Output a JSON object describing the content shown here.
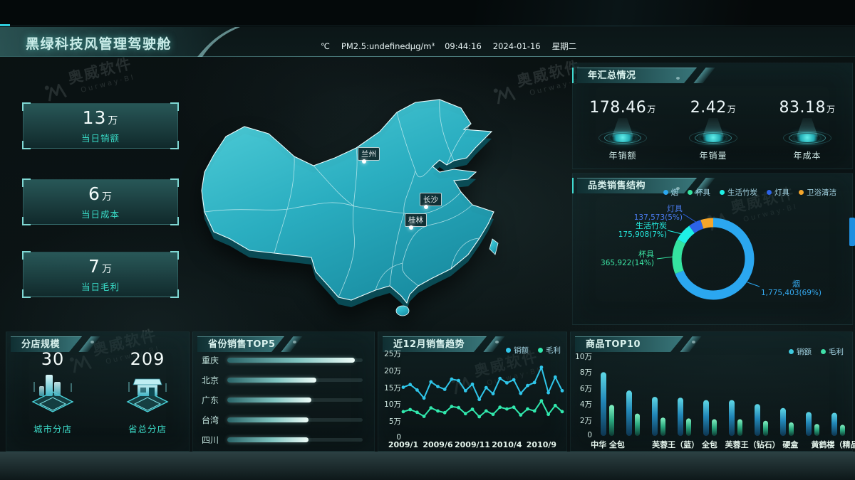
{
  "header": {
    "title": "黑绿科技风管理驾驶舱",
    "temperature": "℃",
    "pm25": "PM2.5:undefinedμg/m³",
    "time": "09:44:16",
    "date": "2024-01-16",
    "weekday": "星期二"
  },
  "left_stats": [
    {
      "value": "13",
      "unit": "万",
      "label": "当日销额"
    },
    {
      "value": "6",
      "unit": "万",
      "label": "当日成本"
    },
    {
      "value": "7",
      "unit": "万",
      "label": "当日毛利"
    }
  ],
  "map": {
    "cities": [
      {
        "name": "兰州"
      },
      {
        "name": "长沙"
      },
      {
        "name": "桂林"
      }
    ]
  },
  "annual": {
    "title": "年汇总情况",
    "items": [
      {
        "value": "178.46",
        "unit": "万",
        "label": "年销额"
      },
      {
        "value": "2.42",
        "unit": "万",
        "label": "年销量"
      },
      {
        "value": "83.18",
        "unit": "万",
        "label": "年成本"
      }
    ]
  },
  "category": {
    "title": "品类销售结构"
  },
  "branch": {
    "title": "分店规模",
    "items": [
      {
        "value": "30",
        "label": "城市分店",
        "icon": "building-icon"
      },
      {
        "value": "209",
        "label": "省总分店",
        "icon": "store-icon"
      }
    ]
  },
  "province": {
    "title": "省份销售TOP5"
  },
  "trend": {
    "title": "近12月销售趋势"
  },
  "product": {
    "title": "商品TOP10"
  },
  "watermark": {
    "cn": "奥威软件",
    "en": "Ourway·BI"
  },
  "colors": {
    "accent": "#35dcc8",
    "sales_line": "#2fc6ea",
    "profit_line": "#31e8ad",
    "pie_yan": "#2ba7f0",
    "pie_beiju": "#35e3a0",
    "pie_zhutan": "#1ef0e6",
    "pie_dengju": "#2c63e8",
    "pie_weiyu": "#f5a62b"
  },
  "chart_data": [
    {
      "id": "category-donut",
      "type": "pie",
      "title": "品类销售结构",
      "legend": [
        "烟",
        "杯具",
        "生活竹炭",
        "灯具",
        "卫浴清洁"
      ],
      "legend_position": "top-right",
      "inner_radius_ratio": 0.78,
      "segments": [
        {
          "name": "烟",
          "value": 1775403,
          "percent": 69,
          "color": "#2ba7f0",
          "label": "1,775,403(69%)"
        },
        {
          "name": "杯具",
          "value": 365922,
          "percent": 14,
          "color": "#35e3a0",
          "label": "365,922(14%)"
        },
        {
          "name": "生活竹炭",
          "value": 175908,
          "percent": 7,
          "color": "#1ef0e6",
          "label": "175,908(7%)"
        },
        {
          "name": "灯具",
          "value": 137573,
          "percent": 5,
          "color": "#2c63e8",
          "label": "137,573(5%)"
        },
        {
          "name": "卫浴清洁",
          "percent": 5,
          "color": "#f5a62b",
          "label": ""
        }
      ]
    },
    {
      "id": "trend-line",
      "type": "line",
      "title": "近12月销售趋势",
      "legend": [
        "销额",
        "毛利"
      ],
      "ylim": [
        0,
        25
      ],
      "y_ticks": [
        "25万",
        "20万",
        "15万",
        "10万",
        "5万",
        "0"
      ],
      "x_tick_labels": [
        "2009/1",
        "2009/6",
        "2009/11",
        "2010/4",
        "2010/9"
      ],
      "x_tick_positions": [
        0,
        5,
        10,
        15,
        20
      ],
      "series": [
        {
          "name": "销额",
          "color": "#2fc6ea",
          "values": [
            15.0,
            15.8,
            14.2,
            11.8,
            16.6,
            15.2,
            14.4,
            17.4,
            17.0,
            14.0,
            15.9,
            11.4,
            14.9,
            13.1,
            17.6,
            16.3,
            17.2,
            13.2,
            15.5,
            16.4,
            20.9,
            13.4,
            18.0,
            14.0
          ]
        },
        {
          "name": "毛利",
          "color": "#31e8ad",
          "values": [
            7.8,
            8.4,
            7.6,
            6.4,
            8.9,
            8.0,
            7.5,
            9.3,
            9.0,
            7.2,
            8.5,
            6.3,
            8.0,
            7.0,
            9.1,
            8.6,
            9.1,
            6.8,
            8.6,
            8.0,
            11.0,
            7.0,
            9.6,
            7.8
          ]
        }
      ]
    },
    {
      "id": "product-bars",
      "type": "bar",
      "title": "商品TOP10",
      "legend": [
        "销额",
        "毛利"
      ],
      "ylim": [
        0,
        10
      ],
      "y_ticks": [
        "10万",
        "8万",
        "6万",
        "4万",
        "2万",
        "0"
      ],
      "x_tick_labels": [
        "中华 全包",
        "芙蓉王（蓝） 全包",
        "芙蓉王（钻石） 硬盒",
        "黄鹤楼（精品）"
      ],
      "x_tick_positions": [
        0,
        3,
        6,
        9
      ],
      "series": [
        {
          "name": "销额",
          "color": "#3fc9de",
          "values": [
            8.0,
            5.7,
            4.9,
            4.8,
            4.5,
            4.5,
            4.0,
            3.5,
            3.0,
            2.9
          ]
        },
        {
          "name": "毛利",
          "color": "#3fe0a8",
          "values": [
            3.9,
            2.8,
            2.3,
            2.2,
            2.1,
            2.1,
            1.9,
            1.7,
            1.5,
            1.4
          ]
        }
      ]
    },
    {
      "id": "province-top5",
      "type": "bar-horizontal",
      "title": "省份销售TOP5",
      "categories": [
        "重庆",
        "北京",
        "广东",
        "台湾",
        "四川"
      ],
      "values_percent": [
        94,
        66,
        62,
        60,
        60
      ]
    }
  ]
}
